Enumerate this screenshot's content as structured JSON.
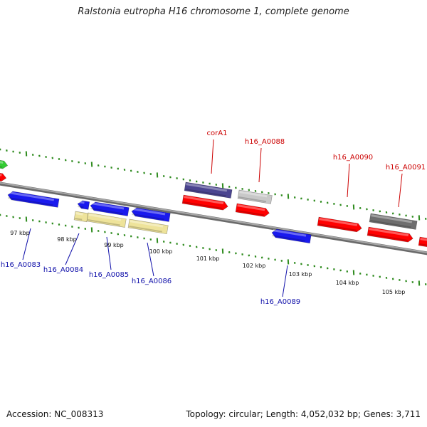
{
  "title": "Ralstonia eutropha H16 chromosome 1, complete genome",
  "footer": {
    "accession": "Accession: NC_008313",
    "summary": "Topology: circular; Length: 4,052,032 bp; Genes: 3,711"
  },
  "colors": {
    "backbone": "#8c8c8c",
    "tick": "#2e8b1e",
    "label_forward": "#cc0000",
    "label_reverse": "#1010aa",
    "gene_red": "#ff0000",
    "gene_blue": "#1a1aee",
    "gene_green": "#33cc33",
    "gene_purple": "#4b4590",
    "gene_light_gray": "#c8c8c8",
    "gene_dark_gray": "#6e6e6e",
    "gene_yellow": "#eee39a"
  },
  "kbp_labels": [
    "97 kbp",
    "98 kbp",
    "99 kbp",
    "100 kbp",
    "101 kbp",
    "102 kbp",
    "103 kbp",
    "104 kbp",
    "105 kbp"
  ],
  "gene_labels_forward": [
    "corA1",
    "h16_A0088",
    "h16_A0090",
    "h16_A0091"
  ],
  "gene_labels_reverse": [
    "h16_A0083",
    "h16_A0084",
    "h16_A0085",
    "h16_A0086",
    "h16_A0089"
  ]
}
